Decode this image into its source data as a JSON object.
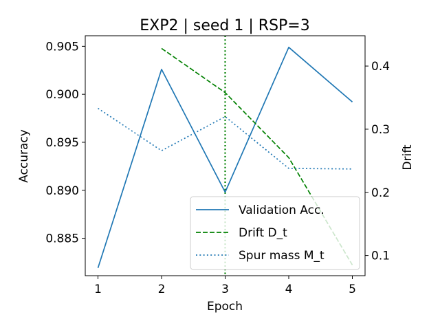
{
  "chart_data": {
    "type": "line",
    "title": "EXP2 | seed 1 | RSP=3",
    "xlabel": "Epoch",
    "ylabel": "Accuracy",
    "y2label": "Drift",
    "x": [
      1,
      2,
      3,
      4,
      5
    ],
    "xlim": [
      0.8,
      5.2
    ],
    "ylim": [
      0.8811,
      0.9061
    ],
    "y2lim": [
      0.068,
      0.448
    ],
    "xticks": [
      1,
      2,
      3,
      4,
      5
    ],
    "yticks": [
      0.885,
      0.89,
      0.895,
      0.9,
      0.905
    ],
    "ytick_labels": [
      "0.885",
      "0.890",
      "0.895",
      "0.900",
      "0.905"
    ],
    "y2ticks": [
      0.1,
      0.2,
      0.3,
      0.4
    ],
    "y2tick_labels": [
      "0.1",
      "0.2",
      "0.3",
      "0.4"
    ],
    "vline_x": 3,
    "series": [
      {
        "name": "Validation Acc.",
        "axis": "left",
        "style": "solid",
        "color": "#1f77b4",
        "x": [
          1,
          2,
          3,
          4,
          5
        ],
        "values": [
          0.8819,
          0.9026,
          0.8898,
          0.9049,
          0.8992
        ]
      },
      {
        "name": "Drift D_t",
        "axis": "right",
        "style": "dashed",
        "color": "#008000",
        "x": [
          2,
          3,
          4,
          5
        ],
        "values": [
          0.428,
          0.358,
          0.255,
          0.085
        ]
      },
      {
        "name": "Spur mass M_t",
        "axis": "right",
        "style": "dotted",
        "color": "#1f77b4",
        "x": [
          1,
          2,
          3,
          4,
          5
        ],
        "values": [
          0.333,
          0.266,
          0.32,
          0.238,
          0.237
        ]
      }
    ],
    "vline_color": "#008000",
    "legend": "lower-right",
    "grid": false
  }
}
